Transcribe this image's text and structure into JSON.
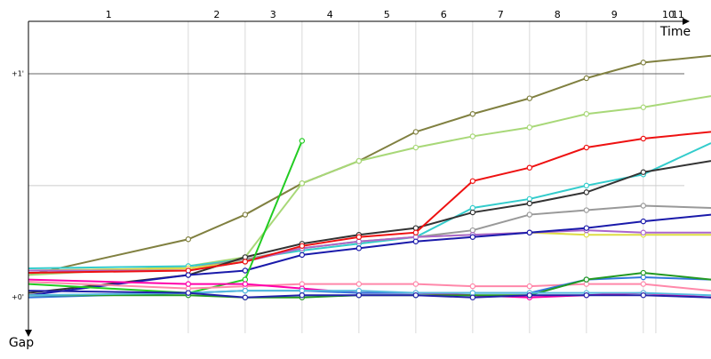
{
  "chart_data": {
    "type": "line",
    "x_axis_label": "Time",
    "y_axis_label": "Gap",
    "xlim": [
      0,
      12
    ],
    "ylim": [
      -0.16,
      1.25
    ],
    "xticks": [
      {
        "value": 1.41,
        "label": "1"
      },
      {
        "value": 3.31,
        "label": "2"
      },
      {
        "value": 4.3,
        "label": "3"
      },
      {
        "value": 5.3,
        "label": "4"
      },
      {
        "value": 6.3,
        "label": "5"
      },
      {
        "value": 7.3,
        "label": "6"
      },
      {
        "value": 8.3,
        "label": "7"
      },
      {
        "value": 9.3,
        "label": "8"
      },
      {
        "value": 10.3,
        "label": "9"
      },
      {
        "value": 11.25,
        "label": "10"
      },
      {
        "value": 11.42,
        "label": "11"
      }
    ],
    "xgrid": [
      2.81,
      3.81,
      4.81,
      5.81,
      6.81,
      7.81,
      8.81,
      9.81,
      10.81,
      11.03
    ],
    "yticks": [
      {
        "value": 0,
        "label": "+0'"
      },
      {
        "value": 1,
        "label": "+1'"
      }
    ],
    "ygrid": [
      0.5,
      1
    ],
    "x": [
      0,
      2.81,
      3.81,
      4.81,
      5.81,
      6.81,
      7.81,
      8.81,
      9.81,
      10.81,
      12
    ],
    "series": [
      {
        "color": "#808040",
        "values": [
          0.1,
          0.26,
          0.37,
          0.51,
          0.61,
          0.74,
          0.82,
          0.89,
          0.98,
          1.05,
          1.08
        ]
      },
      {
        "color": "#a8d878",
        "values": [
          0.1,
          0.14,
          0.18,
          0.51,
          0.61,
          0.67,
          0.72,
          0.76,
          0.82,
          0.85,
          0.9
        ]
      },
      {
        "color": "#33cccc",
        "values": [
          0.13,
          0.14,
          0.17,
          0.21,
          0.24,
          0.27,
          0.4,
          0.44,
          0.5,
          0.55,
          0.69
        ]
      },
      {
        "color": "#999999",
        "values": [
          0.12,
          0.13,
          0.17,
          0.22,
          0.25,
          0.27,
          0.3,
          0.37,
          0.39,
          0.41,
          0.4
        ]
      },
      {
        "color": "#dddd44",
        "values": [
          0.12,
          0.13,
          0.16,
          0.22,
          0.25,
          0.27,
          0.28,
          0.29,
          0.28,
          0.28,
          0.28
        ]
      },
      {
        "color": "#aa66cc",
        "values": [
          0.12,
          0.12,
          0.16,
          0.22,
          0.25,
          0.27,
          0.28,
          0.29,
          0.3,
          0.29,
          0.29
        ]
      },
      {
        "color": "#333333",
        "values": [
          0.02,
          0.1,
          0.18,
          0.24,
          0.28,
          0.31,
          0.38,
          0.42,
          0.47,
          0.56,
          0.61
        ]
      },
      {
        "color": "#ee1111",
        "values": [
          0.11,
          0.12,
          0.16,
          0.23,
          0.27,
          0.29,
          0.52,
          0.58,
          0.67,
          0.71,
          0.74
        ]
      },
      {
        "color": "#1a1aaa",
        "values": [
          0.01,
          0.1,
          0.12,
          0.19,
          0.22,
          0.25,
          0.27,
          0.29,
          0.31,
          0.34,
          0.37
        ]
      },
      {
        "color": "#22cc22",
        "values": [
          0.06,
          0.02,
          0.08,
          0.7,
          null,
          null,
          null,
          null,
          null,
          null,
          null
        ]
      },
      {
        "color": "#ff88aa",
        "values": [
          0.07,
          0.04,
          0.05,
          0.06,
          0.06,
          0.06,
          0.05,
          0.05,
          0.06,
          0.06,
          0.03
        ]
      },
      {
        "color": "#ff00aa",
        "values": [
          0.08,
          0.06,
          0.06,
          0.04,
          0.02,
          0.02,
          0.01,
          0,
          0.01,
          0.02,
          0
        ]
      },
      {
        "color": "#3377dd",
        "values": [
          0,
          0.02,
          0.03,
          0.03,
          0.02,
          0.02,
          0.02,
          0.02,
          0.08,
          0.09,
          0.08
        ]
      },
      {
        "color": "#229922",
        "values": [
          0.01,
          0.01,
          0,
          0,
          0.01,
          0.01,
          0.01,
          0.01,
          0.08,
          0.11,
          0.08
        ]
      },
      {
        "color": "#55bbdd",
        "values": [
          0.01,
          0.02,
          0.03,
          0.03,
          0.03,
          0.02,
          0.02,
          0.02,
          0.02,
          0.02,
          0.01
        ]
      },
      {
        "color": "#2222aa",
        "values": [
          0.03,
          0.02,
          0,
          0.01,
          0.01,
          0.01,
          0,
          0.01,
          0.01,
          0.01,
          0
        ]
      }
    ]
  }
}
